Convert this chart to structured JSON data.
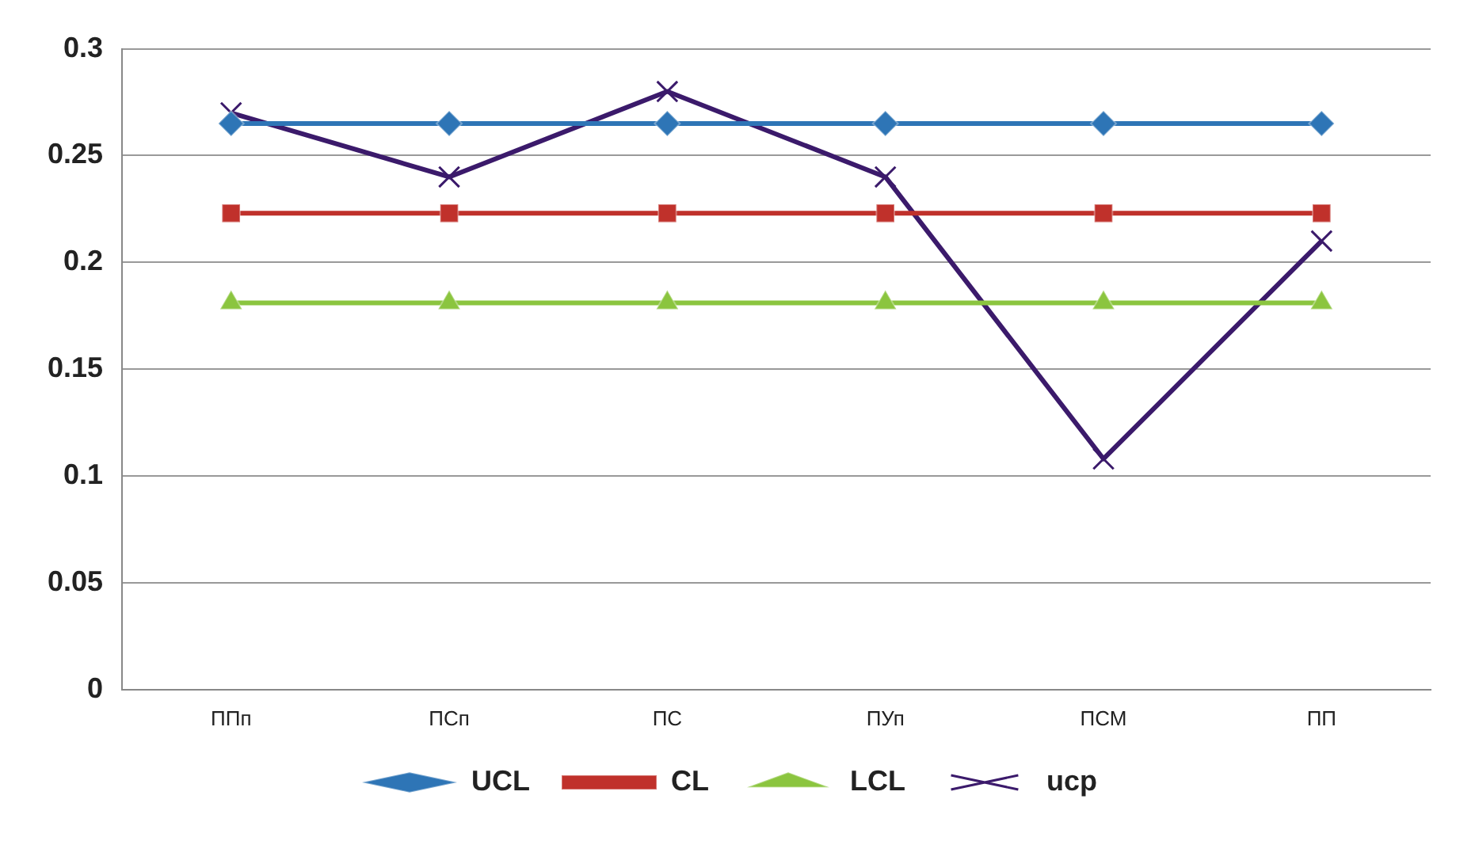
{
  "chart_data": {
    "type": "line",
    "categories": [
      "ППп",
      "ПСп",
      "ПС",
      "ПУп",
      "ПСМ",
      "ПП"
    ],
    "series": [
      {
        "name": "UCL",
        "color": "#2e75b6",
        "marker": "diamond",
        "values": [
          0.265,
          0.265,
          0.265,
          0.265,
          0.265,
          0.265
        ]
      },
      {
        "name": "CL",
        "color": "#c0312b",
        "marker": "square",
        "values": [
          0.223,
          0.223,
          0.223,
          0.223,
          0.223,
          0.223
        ]
      },
      {
        "name": "LCL",
        "color": "#8bc53f",
        "marker": "triangle",
        "values": [
          0.181,
          0.181,
          0.181,
          0.181,
          0.181,
          0.181
        ]
      },
      {
        "name": "ucp",
        "color": "#3b1a6b",
        "marker": "cross",
        "values": [
          0.27,
          0.24,
          0.28,
          0.24,
          0.108,
          0.21
        ]
      }
    ],
    "ylim": [
      0,
      0.3
    ],
    "yticks": [
      0,
      0.05,
      0.1,
      0.15,
      0.2,
      0.25,
      0.3
    ],
    "grid": "y",
    "legend": "bottom"
  }
}
